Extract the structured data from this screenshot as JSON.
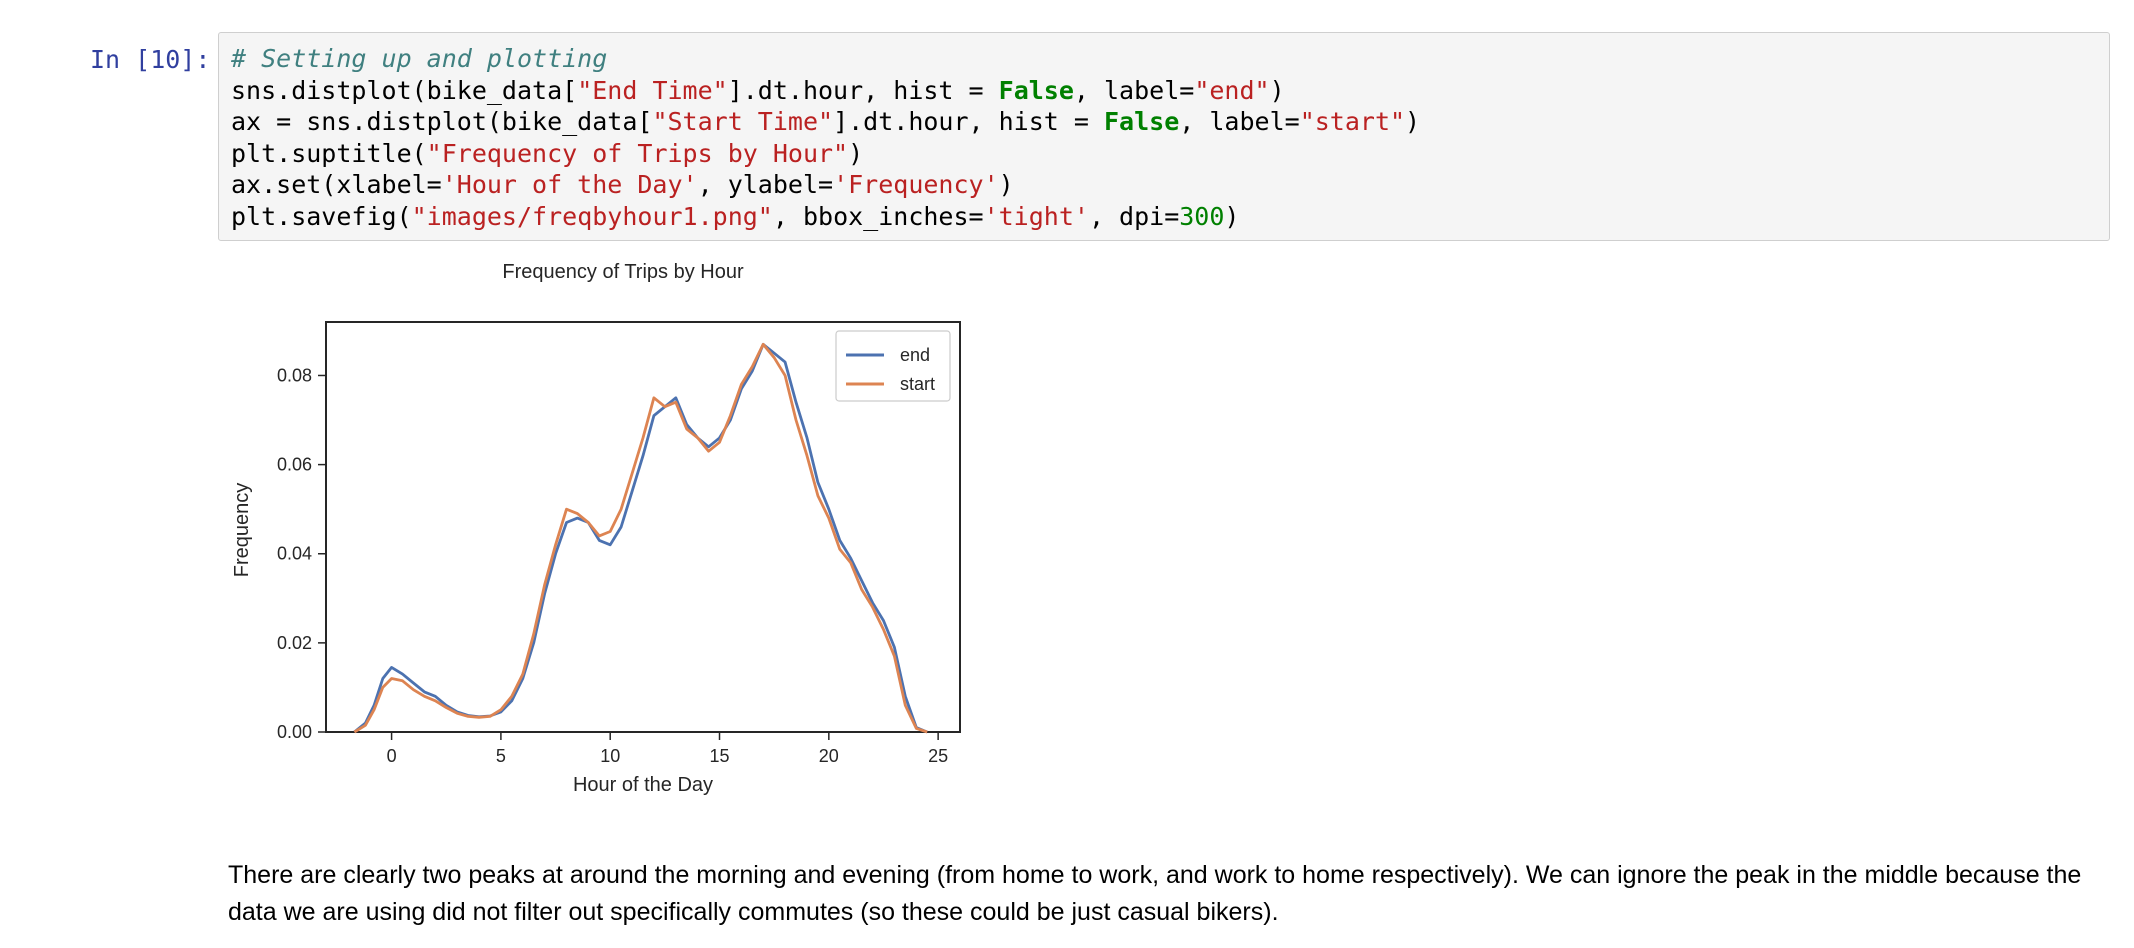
{
  "cell": {
    "prompt": "In [10]:",
    "code_lines": [
      [
        {
          "t": "# Setting up and plotting",
          "c": "c-comment"
        }
      ],
      [
        {
          "t": "sns.distplot(bike_data["
        },
        {
          "t": "\"End Time\"",
          "c": "c-str"
        },
        {
          "t": "].dt.hour, hist = "
        },
        {
          "t": "False",
          "c": "c-kw"
        },
        {
          "t": ", label="
        },
        {
          "t": "\"end\"",
          "c": "c-str"
        },
        {
          "t": ")"
        }
      ],
      [
        {
          "t": "ax = sns.distplot(bike_data["
        },
        {
          "t": "\"Start Time\"",
          "c": "c-str"
        },
        {
          "t": "].dt.hour, hist = "
        },
        {
          "t": "False",
          "c": "c-kw"
        },
        {
          "t": ", label="
        },
        {
          "t": "\"start\"",
          "c": "c-str"
        },
        {
          "t": ")"
        }
      ],
      [
        {
          "t": "plt.suptitle("
        },
        {
          "t": "\"Frequency of Trips by Hour\"",
          "c": "c-str"
        },
        {
          "t": ")"
        }
      ],
      [
        {
          "t": "ax.set(xlabel="
        },
        {
          "t": "'Hour of the Day'",
          "c": "c-str"
        },
        {
          "t": ", ylabel="
        },
        {
          "t": "'Frequency'",
          "c": "c-str"
        },
        {
          "t": ")"
        }
      ],
      [
        {
          "t": "plt.savefig("
        },
        {
          "t": "\"images/freqbyhour1.png\"",
          "c": "c-str"
        },
        {
          "t": ", bbox_inches="
        },
        {
          "t": "'tight'",
          "c": "c-str"
        },
        {
          "t": ", dpi="
        },
        {
          "t": "300",
          "c": "c-num"
        },
        {
          "t": ")"
        }
      ]
    ]
  },
  "chart_data": {
    "type": "line",
    "title": "Frequency of Trips by Hour",
    "xlabel": "Hour of the Day",
    "ylabel": "Frequency",
    "xlim": [
      -3,
      26
    ],
    "ylim": [
      0,
      0.092
    ],
    "xticks": [
      0,
      5,
      10,
      15,
      20,
      25
    ],
    "yticks": [
      0.0,
      0.02,
      0.04,
      0.06,
      0.08
    ],
    "ytick_labels": [
      "0.00",
      "0.02",
      "0.04",
      "0.06",
      "0.08"
    ],
    "grid": false,
    "legend_position": "top-right",
    "series": [
      {
        "name": "end",
        "color": "#4c72b0",
        "x": [
          -1.7,
          -1.2,
          -0.8,
          -0.4,
          0,
          0.5,
          1,
          1.5,
          2,
          2.5,
          3,
          3.5,
          4,
          4.5,
          5,
          5.5,
          6,
          6.5,
          7,
          7.5,
          8,
          8.5,
          9,
          9.5,
          10,
          10.5,
          11,
          11.5,
          12,
          12.5,
          13,
          13.5,
          14,
          14.5,
          15,
          15.5,
          16,
          16.5,
          17,
          17.5,
          18,
          18.5,
          19,
          19.5,
          20,
          20.5,
          21,
          21.5,
          22,
          22.5,
          23,
          23.5,
          24,
          24.5
        ],
        "y": [
          0,
          0.002,
          0.006,
          0.012,
          0.0145,
          0.013,
          0.011,
          0.009,
          0.008,
          0.006,
          0.0045,
          0.0037,
          0.0034,
          0.0036,
          0.0045,
          0.007,
          0.012,
          0.02,
          0.031,
          0.04,
          0.047,
          0.048,
          0.047,
          0.043,
          0.042,
          0.046,
          0.054,
          0.062,
          0.071,
          0.073,
          0.075,
          0.069,
          0.066,
          0.064,
          0.066,
          0.07,
          0.077,
          0.081,
          0.087,
          0.085,
          0.083,
          0.074,
          0.066,
          0.056,
          0.05,
          0.043,
          0.039,
          0.034,
          0.029,
          0.025,
          0.019,
          0.008,
          0.001,
          0
        ]
      },
      {
        "name": "start",
        "color": "#dd8452",
        "x": [
          -1.7,
          -1.2,
          -0.8,
          -0.4,
          0,
          0.5,
          1,
          1.5,
          2,
          2.5,
          3,
          3.5,
          4,
          4.5,
          5,
          5.5,
          6,
          6.5,
          7,
          7.5,
          8,
          8.5,
          9,
          9.5,
          10,
          10.5,
          11,
          11.5,
          12,
          12.5,
          13,
          13.5,
          14,
          14.5,
          15,
          15.5,
          16,
          16.5,
          17,
          17.5,
          18,
          18.5,
          19,
          19.5,
          20,
          20.5,
          21,
          21.5,
          22,
          22.5,
          23,
          23.5,
          24,
          24.5
        ],
        "y": [
          0,
          0.0015,
          0.005,
          0.01,
          0.012,
          0.0115,
          0.0095,
          0.008,
          0.007,
          0.0055,
          0.0042,
          0.0035,
          0.0033,
          0.0035,
          0.005,
          0.008,
          0.013,
          0.022,
          0.033,
          0.042,
          0.05,
          0.049,
          0.047,
          0.044,
          0.045,
          0.05,
          0.058,
          0.066,
          0.075,
          0.073,
          0.074,
          0.068,
          0.066,
          0.063,
          0.065,
          0.071,
          0.078,
          0.082,
          0.087,
          0.084,
          0.08,
          0.07,
          0.062,
          0.053,
          0.048,
          0.041,
          0.038,
          0.032,
          0.028,
          0.023,
          0.017,
          0.006,
          0.0008,
          0
        ]
      }
    ]
  },
  "markdown": {
    "paragraph": "There are clearly two peaks at around the morning and evening (from home to work, and work to home respectively). We can ignore the peak in the middle because the data we are using did not filter out specifically commutes (so these could be just casual bikers)."
  }
}
